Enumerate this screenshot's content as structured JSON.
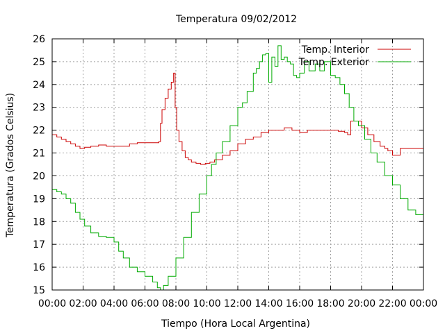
{
  "chart_data": {
    "type": "line",
    "title": "Temperatura 09/02/2012",
    "xlabel": "Tiempo (Hora Local Argentina)",
    "ylabel": "Temperatura (Grados Celsius)",
    "xlim": [
      0,
      24
    ],
    "ylim": [
      15,
      26
    ],
    "x_ticks": [
      0,
      2,
      4,
      6,
      8,
      10,
      12,
      14,
      16,
      18,
      20,
      22,
      24
    ],
    "x_tick_labels": [
      "00:00",
      "02:00",
      "04:00",
      "06:00",
      "08:00",
      "10:00",
      "12:00",
      "14:00",
      "16:00",
      "18:00",
      "20:00",
      "22:00",
      "00:00"
    ],
    "y_ticks": [
      15,
      16,
      17,
      18,
      19,
      20,
      21,
      22,
      23,
      24,
      25,
      26
    ],
    "y_tick_labels": [
      "15",
      "16",
      "17",
      "18",
      "19",
      "20",
      "21",
      "22",
      "23",
      "24",
      "25",
      "26"
    ],
    "grid": true,
    "legend_position": "top-right",
    "series": [
      {
        "name": "Temp. Interior",
        "color": "#cc0000",
        "x": [
          0,
          0.3,
          0.6,
          0.9,
          1.2,
          1.5,
          1.8,
          2.1,
          2.5,
          3.0,
          3.5,
          4.0,
          4.5,
          5.0,
          5.5,
          6.0,
          6.5,
          6.9,
          7.0,
          7.1,
          7.3,
          7.5,
          7.7,
          7.85,
          7.95,
          8.05,
          8.2,
          8.4,
          8.6,
          8.8,
          9.0,
          9.3,
          9.6,
          9.9,
          10.2,
          10.5,
          11.0,
          11.5,
          12.0,
          12.5,
          13.0,
          13.5,
          14.0,
          14.5,
          15.0,
          15.5,
          16.0,
          16.5,
          17.0,
          17.5,
          18.0,
          18.5,
          18.9,
          19.1,
          19.3,
          19.6,
          20.0,
          20.4,
          20.8,
          21.2,
          21.5,
          21.7,
          22.0,
          22.5,
          23.0,
          23.5,
          24.0
        ],
        "y": [
          21.8,
          21.7,
          21.6,
          21.5,
          21.4,
          21.3,
          21.2,
          21.25,
          21.3,
          21.35,
          21.3,
          21.3,
          21.3,
          21.4,
          21.45,
          21.45,
          21.45,
          21.5,
          22.3,
          22.9,
          23.4,
          23.8,
          24.1,
          24.5,
          23.0,
          22.0,
          21.5,
          21.1,
          20.8,
          20.7,
          20.6,
          20.55,
          20.5,
          20.55,
          20.6,
          20.7,
          20.9,
          21.1,
          21.4,
          21.6,
          21.7,
          21.9,
          22.0,
          22.0,
          22.1,
          22.0,
          21.9,
          22.0,
          22.0,
          22.0,
          22.0,
          21.95,
          21.9,
          21.8,
          22.4,
          22.4,
          22.1,
          21.8,
          21.5,
          21.3,
          21.2,
          21.1,
          20.9,
          21.2,
          21.2,
          21.2,
          21.2
        ]
      },
      {
        "name": "Temp. Exterior",
        "color": "#00aa00",
        "x": [
          0,
          0.3,
          0.6,
          0.9,
          1.2,
          1.5,
          1.8,
          2.1,
          2.5,
          3.0,
          3.5,
          4.0,
          4.3,
          4.6,
          5.0,
          5.5,
          6.0,
          6.5,
          6.8,
          7.0,
          7.2,
          7.5,
          8.0,
          8.5,
          9.0,
          9.5,
          10.0,
          10.3,
          10.6,
          11.0,
          11.5,
          12.0,
          12.3,
          12.6,
          13.0,
          13.2,
          13.4,
          13.6,
          13.8,
          14.0,
          14.2,
          14.4,
          14.6,
          14.8,
          15.0,
          15.2,
          15.4,
          15.6,
          15.8,
          16.0,
          16.3,
          16.6,
          17.0,
          17.3,
          17.6,
          18.0,
          18.3,
          18.6,
          18.9,
          19.2,
          19.5,
          19.8,
          20.2,
          20.6,
          21.0,
          21.5,
          22.0,
          22.5,
          23.0,
          23.5,
          24.0
        ],
        "y": [
          19.4,
          19.3,
          19.2,
          19.0,
          18.8,
          18.4,
          18.1,
          17.8,
          17.5,
          17.35,
          17.3,
          17.1,
          16.7,
          16.4,
          16.0,
          15.8,
          15.6,
          15.35,
          15.1,
          15.0,
          15.2,
          15.6,
          16.4,
          17.3,
          18.4,
          19.2,
          20.0,
          20.5,
          21.0,
          21.5,
          22.2,
          23.0,
          23.2,
          23.7,
          24.5,
          24.7,
          25.0,
          25.3,
          25.35,
          24.1,
          25.2,
          24.8,
          25.7,
          25.1,
          25.2,
          25.0,
          24.9,
          24.4,
          24.3,
          24.5,
          25.0,
          24.6,
          24.9,
          24.6,
          25.0,
          24.4,
          24.3,
          24.0,
          23.6,
          23.0,
          22.4,
          22.2,
          21.6,
          21.0,
          20.6,
          20.0,
          19.6,
          19.0,
          18.5,
          18.3,
          18.0
        ]
      }
    ]
  }
}
